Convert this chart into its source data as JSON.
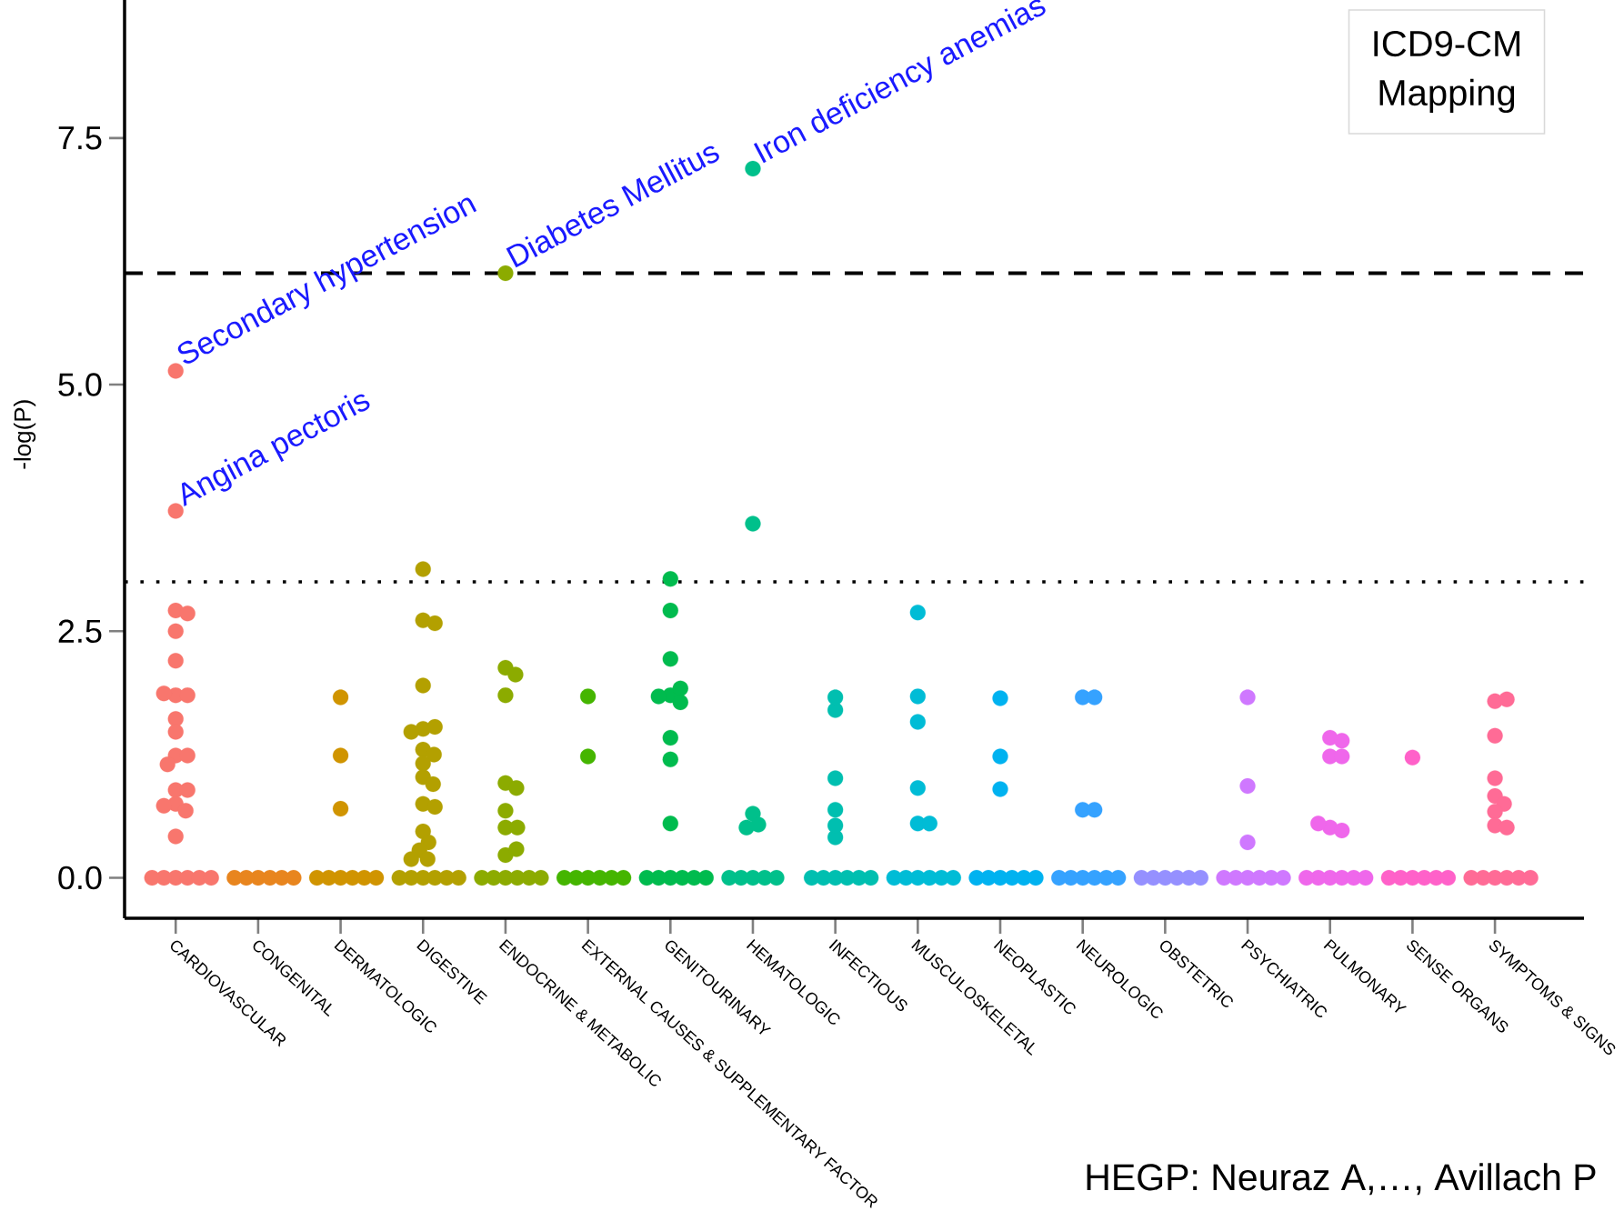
{
  "chart_data": {
    "type": "scatter",
    "ylabel": "-log(P)",
    "marker": "circle",
    "categories": [
      "CARDIOVASCULAR",
      "CONGENITAL",
      "DERMATOLOGIC",
      "DIGESTIVE",
      "ENDOCRINE & METABOLIC",
      "EXTERNAL CAUSES & SUPPLEMENTARY FACTOR",
      "GENITOURINARY",
      "HEMATOLOGIC",
      "INFECTIOUS",
      "MUSCULOSKELETAL",
      "NEOPLASTIC",
      "NEUROLOGIC",
      "OBSTETRIC",
      "PSYCHIATRIC",
      "PULMONARY",
      "SENSE ORGANS",
      "SYMPTOMS & SIGNS"
    ],
    "ylim": [
      -0.41,
      8.9
    ],
    "yticks": [
      {
        "value": 0,
        "label": "0.0"
      },
      2.5,
      {
        "value": 5,
        "label": "5.0"
      },
      {
        "value": 7.5,
        "label": "7.5"
      }
    ],
    "ref_lines": [
      {
        "axis": "y",
        "value": 6.13,
        "line_style": "dashed",
        "color": "#000000"
      },
      {
        "axis": "y",
        "value": 3.0,
        "line_style": "dotted",
        "color": "#000000"
      }
    ],
    "annotations": [
      {
        "text": "Secondary hypertension",
        "x": "CARDIOVASCULAR",
        "y": 5.14
      },
      {
        "text": "Angina pectoris",
        "x": "CARDIOVASCULAR",
        "y": 3.72
      },
      {
        "text": "Diabetes Mellitus",
        "x": "ENDOCRINE & METABOLIC",
        "y": 6.13
      },
      {
        "text": "Iron deficiency anemias",
        "x": "HEMATOLOGIC",
        "y": 7.19
      },
      "ICD9-CM Mapping",
      "HEGP: Neuraz A,…, Avillach P"
    ],
    "series": [
      {
        "color": "#F8766D",
        "x": [
          "CARDIOVASCULAR",
          "CARDIOVASCULAR",
          "CARDIOVASCULAR",
          "CARDIOVASCULAR",
          "CARDIOVASCULAR",
          "CARDIOVASCULAR",
          "CARDIOVASCULAR",
          "CARDIOVASCULAR",
          "CARDIOVASCULAR",
          "CARDIOVASCULAR",
          "CARDIOVASCULAR",
          "CARDIOVASCULAR",
          "CARDIOVASCULAR",
          "CARDIOVASCULAR",
          "CARDIOVASCULAR",
          "CARDIOVASCULAR",
          "CARDIOVASCULAR",
          "CARDIOVASCULAR",
          "CARDIOVASCULAR",
          "CARDIOVASCULAR",
          "CARDIOVASCULAR",
          "CARDIOVASCULAR",
          "CARDIOVASCULAR",
          "CARDIOVASCULAR",
          "CARDIOVASCULAR",
          "CARDIOVASCULAR"
        ],
        "values": [
          5.14,
          3.72,
          2.71,
          2.68,
          2.5,
          2.2,
          1.85,
          1.85,
          1.87,
          1.61,
          1.48,
          1.24,
          1.24,
          1.15,
          0.89,
          0.89,
          0.75,
          0.68,
          0.73,
          0.42,
          0,
          0,
          0,
          0,
          0,
          0
        ]
      },
      {
        "color": "#E8851E",
        "x": [
          "CONGENITAL",
          "CONGENITAL",
          "CONGENITAL",
          "CONGENITAL",
          "CONGENITAL",
          "CONGENITAL"
        ],
        "values": [
          0,
          0,
          0,
          0,
          0,
          0
        ]
      },
      {
        "color": "#D09400",
        "x": [
          "DERMATOLOGIC",
          "DERMATOLOGIC",
          "DERMATOLOGIC",
          "DERMATOLOGIC",
          "DERMATOLOGIC",
          "DERMATOLOGIC",
          "DERMATOLOGIC",
          "DERMATOLOGIC",
          "DERMATOLOGIC"
        ],
        "values": [
          1.83,
          1.24,
          0.7,
          0,
          0,
          0,
          0,
          0,
          0
        ]
      },
      {
        "color": "#B3A000",
        "x": [
          "DIGESTIVE",
          "DIGESTIVE",
          "DIGESTIVE",
          "DIGESTIVE",
          "DIGESTIVE",
          "DIGESTIVE",
          "DIGESTIVE",
          "DIGESTIVE",
          "DIGESTIVE",
          "DIGESTIVE",
          "DIGESTIVE",
          "DIGESTIVE",
          "DIGESTIVE",
          "DIGESTIVE",
          "DIGESTIVE",
          "DIGESTIVE",
          "DIGESTIVE",
          "DIGESTIVE",
          "DIGESTIVE",
          "DIGESTIVE",
          "DIGESTIVE",
          "DIGESTIVE",
          "DIGESTIVE",
          "DIGESTIVE",
          "DIGESTIVE"
        ],
        "values": [
          3.13,
          2.61,
          2.58,
          1.95,
          1.51,
          1.53,
          1.48,
          1.3,
          1.25,
          1.16,
          1.02,
          0.95,
          0.75,
          0.72,
          0.47,
          0.36,
          0.28,
          0.19,
          0.19,
          0,
          0,
          0,
          0,
          0,
          0
        ]
      },
      {
        "color": "#8CAB00",
        "x": [
          "ENDOCRINE & METABOLIC",
          "ENDOCRINE & METABOLIC",
          "ENDOCRINE & METABOLIC",
          "ENDOCRINE & METABOLIC",
          "ENDOCRINE & METABOLIC",
          "ENDOCRINE & METABOLIC",
          "ENDOCRINE & METABOLIC",
          "ENDOCRINE & METABOLIC",
          "ENDOCRINE & METABOLIC",
          "ENDOCRINE & METABOLIC",
          "ENDOCRINE & METABOLIC",
          "ENDOCRINE & METABOLIC",
          "ENDOCRINE & METABOLIC",
          "ENDOCRINE & METABOLIC",
          "ENDOCRINE & METABOLIC",
          "ENDOCRINE & METABOLIC",
          "ENDOCRINE & METABOLIC"
        ],
        "values": [
          6.13,
          2.13,
          2.06,
          1.85,
          0.96,
          0.91,
          0.68,
          0.51,
          0.51,
          0.23,
          0.29,
          0,
          0,
          0,
          0,
          0,
          0
        ]
      },
      {
        "color": "#45B500",
        "x": [
          "EXTERNAL CAUSES & SUPPLEMENTARY FACTOR",
          "EXTERNAL CAUSES & SUPPLEMENTARY FACTOR",
          "EXTERNAL CAUSES & SUPPLEMENTARY FACTOR",
          "EXTERNAL CAUSES & SUPPLEMENTARY FACTOR",
          "EXTERNAL CAUSES & SUPPLEMENTARY FACTOR",
          "EXTERNAL CAUSES & SUPPLEMENTARY FACTOR",
          "EXTERNAL CAUSES & SUPPLEMENTARY FACTOR",
          "EXTERNAL CAUSES & SUPPLEMENTARY FACTOR"
        ],
        "values": [
          1.84,
          1.23,
          0,
          0,
          0,
          0,
          0,
          0
        ]
      },
      {
        "color": "#00BB4E",
        "x": [
          "GENITOURINARY",
          "GENITOURINARY",
          "GENITOURINARY",
          "GENITOURINARY",
          "GENITOURINARY",
          "GENITOURINARY",
          "GENITOURINARY",
          "GENITOURINARY",
          "GENITOURINARY",
          "GENITOURINARY",
          "GENITOURINARY",
          "GENITOURINARY",
          "GENITOURINARY",
          "GENITOURINARY",
          "GENITOURINARY",
          "GENITOURINARY"
        ],
        "values": [
          3.03,
          2.71,
          2.22,
          1.85,
          1.92,
          1.84,
          1.78,
          1.42,
          1.2,
          0.55,
          0,
          0,
          0,
          0,
          0,
          0
        ]
      },
      {
        "color": "#00C08B",
        "x": [
          "HEMATOLOGIC",
          "HEMATOLOGIC",
          "HEMATOLOGIC",
          "HEMATOLOGIC",
          "HEMATOLOGIC",
          "HEMATOLOGIC",
          "HEMATOLOGIC",
          "HEMATOLOGIC",
          "HEMATOLOGIC",
          "HEMATOLOGIC"
        ],
        "values": [
          7.19,
          3.59,
          0.65,
          0.54,
          0.51,
          0,
          0,
          0,
          0,
          0
        ]
      },
      {
        "color": "#00BFB0",
        "x": [
          "INFECTIOUS",
          "INFECTIOUS",
          "INFECTIOUS",
          "INFECTIOUS",
          "INFECTIOUS",
          "INFECTIOUS",
          "INFECTIOUS",
          "INFECTIOUS",
          "INFECTIOUS",
          "INFECTIOUS",
          "INFECTIOUS",
          "INFECTIOUS"
        ],
        "values": [
          1.7,
          1.83,
          1.01,
          0.69,
          0.41,
          0.53,
          0,
          0,
          0,
          0,
          0,
          0
        ]
      },
      {
        "color": "#00BCD6",
        "x": [
          "MUSCULOSKELETAL",
          "MUSCULOSKELETAL",
          "MUSCULOSKELETAL",
          "MUSCULOSKELETAL",
          "MUSCULOSKELETAL",
          "MUSCULOSKELETAL",
          "MUSCULOSKELETAL",
          "MUSCULOSKELETAL",
          "MUSCULOSKELETAL",
          "MUSCULOSKELETAL",
          "MUSCULOSKELETAL",
          "MUSCULOSKELETAL"
        ],
        "values": [
          2.69,
          1.84,
          1.58,
          0.91,
          0.55,
          0.55,
          0,
          0,
          0,
          0,
          0,
          0
        ]
      },
      {
        "color": "#00B2F0",
        "x": [
          "NEOPLASTIC",
          "NEOPLASTIC",
          "NEOPLASTIC",
          "NEOPLASTIC",
          "NEOPLASTIC",
          "NEOPLASTIC",
          "NEOPLASTIC",
          "NEOPLASTIC",
          "NEOPLASTIC"
        ],
        "values": [
          1.82,
          1.23,
          0.9,
          0,
          0,
          0,
          0,
          0,
          0
        ]
      },
      {
        "color": "#35A2FF",
        "x": [
          "NEUROLOGIC",
          "NEUROLOGIC",
          "NEUROLOGIC",
          "NEUROLOGIC",
          "NEUROLOGIC",
          "NEUROLOGIC",
          "NEUROLOGIC",
          "NEUROLOGIC",
          "NEUROLOGIC",
          "NEUROLOGIC"
        ],
        "values": [
          1.83,
          1.83,
          0.69,
          0.69,
          0,
          0,
          0,
          0,
          0,
          0
        ]
      },
      {
        "color": "#9590FF",
        "x": [
          "OBSTETRIC",
          "OBSTETRIC",
          "OBSTETRIC",
          "OBSTETRIC",
          "OBSTETRIC",
          "OBSTETRIC"
        ],
        "values": [
          0,
          0,
          0,
          0,
          0,
          0
        ]
      },
      {
        "color": "#CF78FF",
        "x": [
          "PSYCHIATRIC",
          "PSYCHIATRIC",
          "PSYCHIATRIC",
          "PSYCHIATRIC",
          "PSYCHIATRIC",
          "PSYCHIATRIC",
          "PSYCHIATRIC",
          "PSYCHIATRIC",
          "PSYCHIATRIC"
        ],
        "values": [
          1.83,
          0.93,
          0.36,
          0,
          0,
          0,
          0,
          0,
          0
        ]
      },
      {
        "color": "#EF67EB",
        "x": [
          "PULMONARY",
          "PULMONARY",
          "PULMONARY",
          "PULMONARY",
          "PULMONARY",
          "PULMONARY",
          "PULMONARY",
          "PULMONARY",
          "PULMONARY",
          "PULMONARY",
          "PULMONARY",
          "PULMONARY",
          "PULMONARY"
        ],
        "values": [
          1.42,
          1.39,
          1.23,
          1.23,
          0.51,
          0.48,
          0.55,
          0,
          0,
          0,
          0,
          0,
          0
        ]
      },
      {
        "color": "#FF61C9",
        "x": [
          "SENSE ORGANS",
          "SENSE ORGANS",
          "SENSE ORGANS",
          "SENSE ORGANS",
          "SENSE ORGANS",
          "SENSE ORGANS",
          "SENSE ORGANS"
        ],
        "values": [
          1.22,
          0,
          0,
          0,
          0,
          0,
          0
        ]
      },
      {
        "color": "#FF6B96",
        "x": [
          "SYMPTOMS & SIGNS",
          "SYMPTOMS & SIGNS",
          "SYMPTOMS & SIGNS",
          "SYMPTOMS & SIGNS",
          "SYMPTOMS & SIGNS",
          "SYMPTOMS & SIGNS",
          "SYMPTOMS & SIGNS",
          "SYMPTOMS & SIGNS",
          "SYMPTOMS & SIGNS",
          "SYMPTOMS & SIGNS",
          "SYMPTOMS & SIGNS",
          "SYMPTOMS & SIGNS",
          "SYMPTOMS & SIGNS",
          "SYMPTOMS & SIGNS",
          "SYMPTOMS & SIGNS"
        ],
        "values": [
          1.79,
          1.81,
          1.44,
          1.01,
          0.83,
          0.75,
          0.67,
          0.53,
          0.51,
          0,
          0,
          0,
          0,
          0,
          0
        ]
      }
    ]
  }
}
